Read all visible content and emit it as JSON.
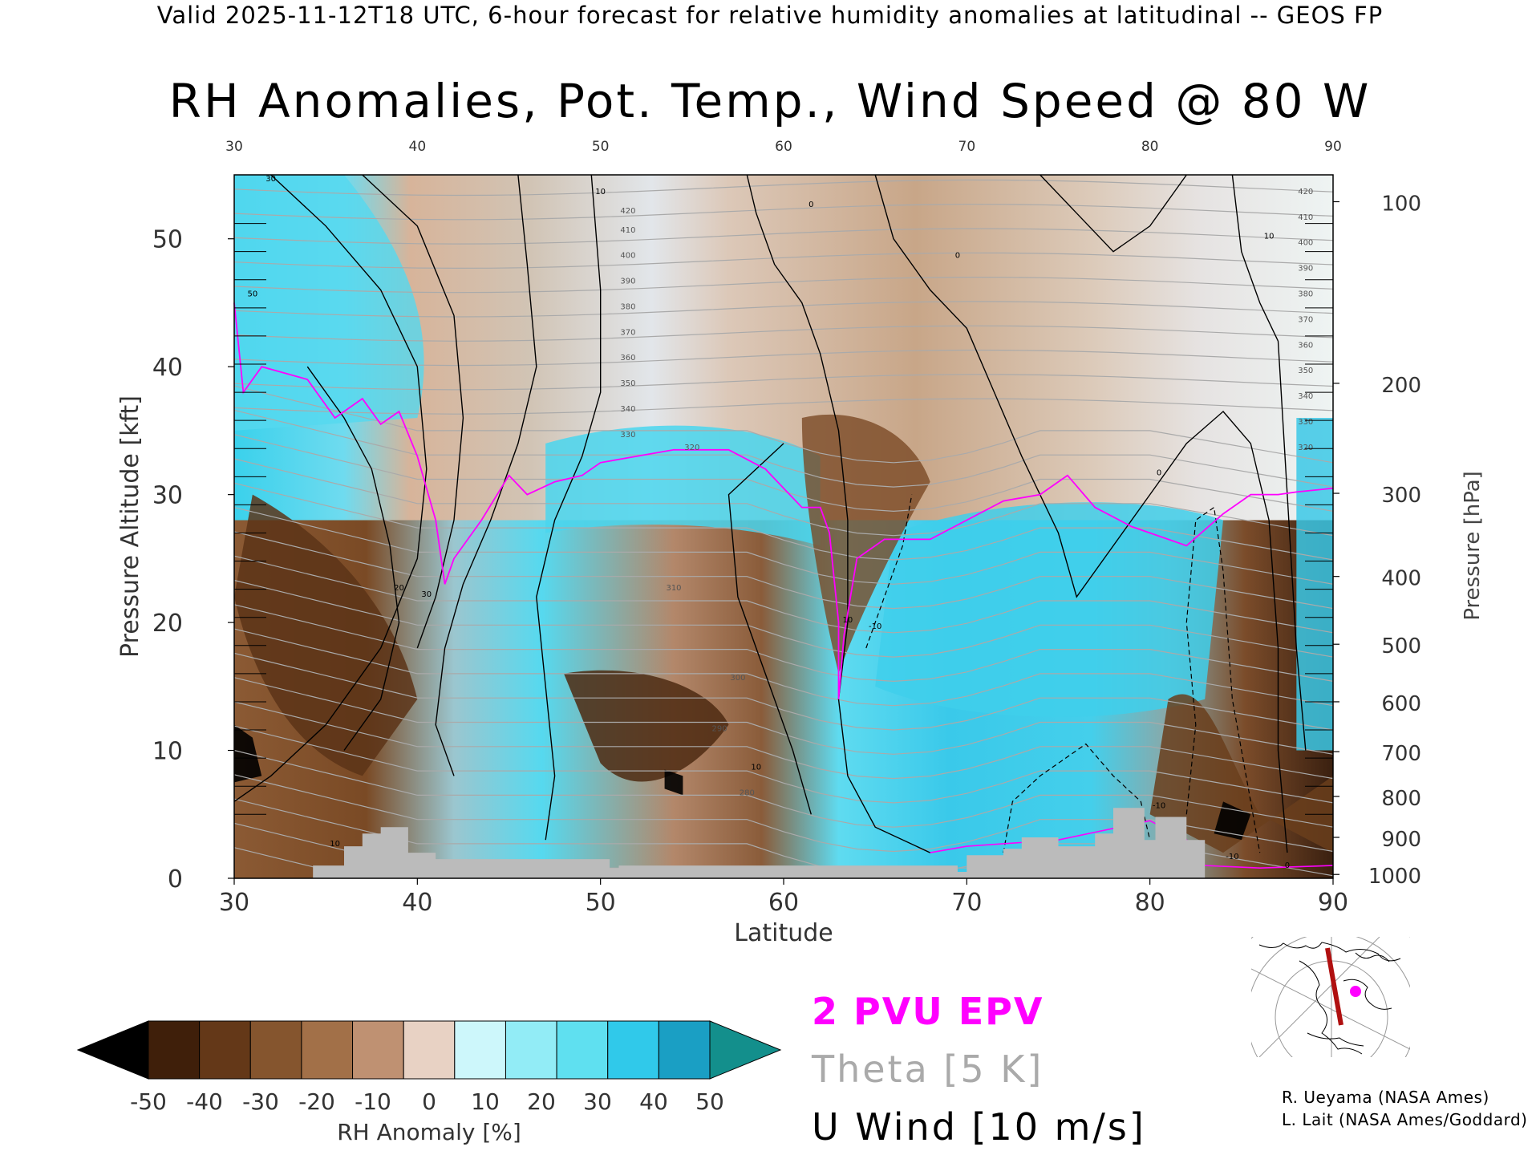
{
  "header": "Valid 2025-11-12T18 UTC, 6-hour forecast for relative humidity anomalies at latitudinal -- GEOS FP",
  "title": "RH Anomalies, Pot. Temp., Wind Speed @ 80 W",
  "legend": {
    "epv": "2 PVU EPV",
    "theta": "Theta [5 K]",
    "uwind": "U Wind [10 m/s]"
  },
  "credits": [
    "R. Ueyama (NASA Ames)",
    "L. Lait (NASA Ames/Goddard)"
  ],
  "colors": {
    "epv": "#ff00ff",
    "theta": "#aaaaaa",
    "terrain": "#bbbbbb",
    "wind": "#000000"
  },
  "chart_data": {
    "type": "heatmap",
    "title": "RH Anomalies, Pot. Temp., Wind Speed @ 80 W",
    "xlabel": "Latitude",
    "ylabel": "Pressure Altitude [kft]",
    "y2label": "Pressure [hPa]",
    "xlim": [
      30,
      90
    ],
    "ylim": [
      0,
      55
    ],
    "xticks": [
      30,
      40,
      50,
      60,
      70,
      80,
      90
    ],
    "yticks": [
      0,
      10,
      20,
      30,
      40,
      50
    ],
    "pressure_ticks": [
      {
        "hpa": "100",
        "kft": 52.9
      },
      {
        "hpa": "200",
        "kft": 38.7
      },
      {
        "hpa": "300",
        "kft": 30.1
      },
      {
        "hpa": "400",
        "kft": 23.6
      },
      {
        "hpa": "500",
        "kft": 18.3
      },
      {
        "hpa": "600",
        "kft": 13.8
      },
      {
        "hpa": "700",
        "kft": 9.9
      },
      {
        "hpa": "800",
        "kft": 6.4
      },
      {
        "hpa": "900",
        "kft": 3.2
      },
      {
        "hpa": "1000",
        "kft": 0.3
      }
    ],
    "colorbar": {
      "label": "RH Anomaly [%]",
      "ticks": [
        "-50",
        "-40",
        "-30",
        "-20",
        "-10",
        "0",
        "10",
        "20",
        "30",
        "40",
        "50"
      ],
      "colors": [
        "#000000",
        "#3f1f0a",
        "#643818",
        "#85552e",
        "#a27048",
        "#bf9172",
        "#e8d2c4",
        "#cdf7fb",
        "#92ecf6",
        "#5fe0f0",
        "#30c9ea",
        "#1a9fc4",
        "#138f8c"
      ]
    },
    "theta_labels": [
      {
        "lat": 88.5,
        "kft": 53.5,
        "value": "420"
      },
      {
        "lat": 88.5,
        "kft": 51.5,
        "value": "410"
      },
      {
        "lat": 88.5,
        "kft": 49.5,
        "value": "400"
      },
      {
        "lat": 88.5,
        "kft": 47.5,
        "value": "390"
      },
      {
        "lat": 88.5,
        "kft": 45.5,
        "value": "380"
      },
      {
        "lat": 88.5,
        "kft": 43.5,
        "value": "370"
      },
      {
        "lat": 88.5,
        "kft": 41.5,
        "value": "360"
      },
      {
        "lat": 88.5,
        "kft": 39.5,
        "value": "350"
      },
      {
        "lat": 88.5,
        "kft": 37.5,
        "value": "340"
      },
      {
        "lat": 88.5,
        "kft": 35.5,
        "value": "330"
      },
      {
        "lat": 88.5,
        "kft": 33.5,
        "value": "320"
      },
      {
        "lat": 51.5,
        "kft": 52.0,
        "value": "420"
      },
      {
        "lat": 51.5,
        "kft": 50.5,
        "value": "410"
      },
      {
        "lat": 51.5,
        "kft": 48.5,
        "value": "400"
      },
      {
        "lat": 51.5,
        "kft": 46.5,
        "value": "390"
      },
      {
        "lat": 51.5,
        "kft": 44.5,
        "value": "380"
      },
      {
        "lat": 51.5,
        "kft": 42.5,
        "value": "370"
      },
      {
        "lat": 51.5,
        "kft": 40.5,
        "value": "360"
      },
      {
        "lat": 51.5,
        "kft": 38.5,
        "value": "350"
      },
      {
        "lat": 51.5,
        "kft": 36.5,
        "value": "340"
      },
      {
        "lat": 51.5,
        "kft": 34.5,
        "value": "330"
      },
      {
        "lat": 55.0,
        "kft": 33.5,
        "value": "320"
      },
      {
        "lat": 54.0,
        "kft": 22.5,
        "value": "310"
      },
      {
        "lat": 57.5,
        "kft": 15.5,
        "value": "300"
      },
      {
        "lat": 56.5,
        "kft": 11.5,
        "value": "290"
      },
      {
        "lat": 58.0,
        "kft": 6.5,
        "value": "280"
      }
    ],
    "wind_labels": [
      {
        "lat": 40.5,
        "kft": 22.0,
        "value": "30"
      },
      {
        "lat": 39.0,
        "kft": 22.5,
        "value": "20"
      },
      {
        "lat": 32.0,
        "kft": 54.5,
        "value": "30"
      },
      {
        "lat": 31.0,
        "kft": 45.5,
        "value": "50"
      },
      {
        "lat": 50.0,
        "kft": 53.5,
        "value": "10"
      },
      {
        "lat": 63.5,
        "kft": 20.0,
        "value": "10"
      },
      {
        "lat": 65.0,
        "kft": 19.5,
        "value": "-10"
      },
      {
        "lat": 61.5,
        "kft": 52.5,
        "value": "0"
      },
      {
        "lat": 69.5,
        "kft": 48.5,
        "value": "0"
      },
      {
        "lat": 86.5,
        "kft": 50.0,
        "value": "10"
      },
      {
        "lat": 80.5,
        "kft": 31.5,
        "value": "0"
      },
      {
        "lat": 35.5,
        "kft": 2.5,
        "value": "10"
      },
      {
        "lat": 58.5,
        "kft": 8.5,
        "value": "10"
      },
      {
        "lat": 80.5,
        "kft": 5.5,
        "value": "-10"
      },
      {
        "lat": 84.5,
        "kft": 1.5,
        "value": "-10"
      },
      {
        "lat": 87.5,
        "kft": 0.8,
        "value": "0"
      }
    ],
    "terrain_kft": [
      [
        30,
        0
      ],
      [
        34.3,
        0
      ],
      [
        34.3,
        1
      ],
      [
        36,
        1
      ],
      [
        36,
        2.5
      ],
      [
        37,
        2.5
      ],
      [
        37,
        3.5
      ],
      [
        38,
        3.5
      ],
      [
        38,
        4
      ],
      [
        39.5,
        4
      ],
      [
        39.5,
        2
      ],
      [
        41,
        2
      ],
      [
        41,
        1.5
      ],
      [
        50.5,
        1.5
      ],
      [
        50.5,
        0.8
      ],
      [
        51,
        0.8
      ],
      [
        51,
        1
      ],
      [
        69.5,
        1
      ],
      [
        69.5,
        0.5
      ],
      [
        70,
        0.5
      ],
      [
        70,
        1.8
      ],
      [
        72,
        1.8
      ],
      [
        72,
        2.3
      ],
      [
        73,
        2.3
      ],
      [
        73,
        3.2
      ],
      [
        75,
        3.2
      ],
      [
        75,
        2.5
      ],
      [
        77,
        2.5
      ],
      [
        77,
        3.5
      ],
      [
        78,
        3.5
      ],
      [
        78,
        5.5
      ],
      [
        79.7,
        5.5
      ],
      [
        79.7,
        3
      ],
      [
        80.3,
        3
      ],
      [
        80.3,
        4.8
      ],
      [
        82,
        4.8
      ],
      [
        82,
        3
      ],
      [
        83,
        3
      ],
      [
        83,
        0
      ],
      [
        90,
        0
      ]
    ],
    "map_inset_labels": []
  }
}
